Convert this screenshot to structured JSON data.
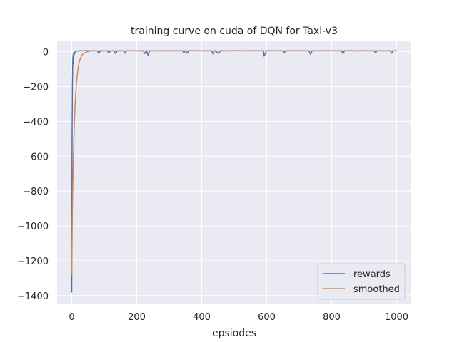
{
  "chart_data": {
    "type": "line",
    "title": "training curve on cuda of DQN for Taxi-v3",
    "xlabel": "epsiodes",
    "ylabel": "",
    "xlim": [
      -45,
      1045
    ],
    "ylim": [
      -1450,
      60
    ],
    "xticks": [
      0,
      200,
      400,
      600,
      800,
      1000
    ],
    "xtick_labels": [
      "0",
      "200",
      "400",
      "600",
      "800",
      "1000"
    ],
    "yticks": [
      0,
      -200,
      -400,
      -600,
      -800,
      -1000,
      -1200,
      -1400
    ],
    "ytick_labels": [
      "0",
      "−200",
      "−400",
      "−600",
      "−800",
      "−1000",
      "−1200",
      "−1400"
    ],
    "grid": true,
    "legend_position": "lower-right",
    "series": [
      {
        "name": "rewards",
        "color": "#4c72b0",
        "x": [
          0,
          1,
          2,
          3,
          4,
          5,
          6,
          8,
          10,
          12,
          15,
          20,
          25,
          30,
          40,
          50,
          60,
          70,
          80,
          82,
          90,
          100,
          110,
          113,
          120,
          130,
          135,
          140,
          150,
          160,
          162,
          170,
          180,
          200,
          210,
          220,
          225,
          230,
          235,
          240,
          260,
          280,
          290,
          300,
          320,
          340,
          345,
          350,
          355,
          360,
          380,
          400,
          420,
          430,
          435,
          440,
          450,
          460,
          480,
          500,
          520,
          540,
          560,
          580,
          590,
          592,
          600,
          620,
          640,
          650,
          652,
          660,
          680,
          700,
          720,
          730,
          735,
          740,
          760,
          780,
          800,
          820,
          830,
          835,
          840,
          860,
          880,
          900,
          920,
          930,
          935,
          940,
          960,
          980,
          985,
          990,
          1000
        ],
        "values": [
          -1380,
          -500,
          -200,
          -60,
          -20,
          -70,
          -5,
          -15,
          0,
          2,
          5,
          3,
          7,
          5,
          6,
          6,
          5,
          6,
          4,
          -8,
          6,
          5,
          6,
          -6,
          5,
          6,
          -10,
          5,
          6,
          5,
          -8,
          6,
          6,
          5,
          6,
          5,
          -10,
          6,
          -20,
          6,
          5,
          6,
          5,
          6,
          5,
          6,
          -5,
          6,
          -8,
          6,
          6,
          5,
          6,
          5,
          -12,
          6,
          -8,
          6,
          5,
          6,
          6,
          5,
          6,
          5,
          6,
          -25,
          6,
          6,
          5,
          6,
          -6,
          5,
          6,
          6,
          5,
          6,
          -15,
          6,
          5,
          6,
          6,
          5,
          6,
          -10,
          6,
          6,
          5,
          6,
          5,
          6,
          -6,
          6,
          5,
          6,
          -8,
          6,
          6
        ]
      },
      {
        "name": "smoothed",
        "color": "#dd8452",
        "x": [
          0,
          2,
          4,
          6,
          8,
          10,
          12,
          14,
          16,
          18,
          20,
          22,
          25,
          28,
          31,
          35,
          40,
          45,
          50,
          55,
          60,
          70,
          80,
          100,
          130,
          160,
          200,
          300,
          400,
          500,
          600,
          700,
          800,
          900,
          1000
        ],
        "values": [
          -1280,
          -900,
          -690,
          -530,
          -410,
          -320,
          -250,
          -195,
          -150,
          -115,
          -88,
          -68,
          -47,
          -32,
          -21,
          -12,
          -5,
          -1,
          1.5,
          3,
          4,
          4.5,
          4.8,
          5,
          5,
          5,
          5,
          5,
          5,
          5,
          5,
          5,
          5,
          5,
          5
        ]
      }
    ]
  }
}
